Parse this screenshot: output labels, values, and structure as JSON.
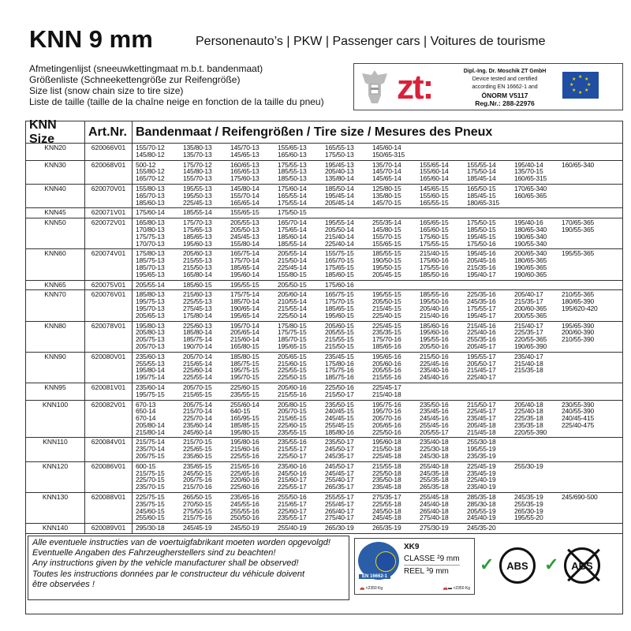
{
  "header": {
    "title": "KNN 9 mm",
    "subtitle": "Personenauto’s | PKW | Passenger cars | Voitures de tourisme",
    "list": [
      "Afmetingenlijst (sneeuwkettingmaat m.b.t. bandenmaat)",
      "Größenliste (Schneekettengröße zur Reifengröße)",
      "Size list (snow chain size to tire size)",
      "Liste de taille (taille de la chaîne neige en fonction de la taille du pneu)"
    ]
  },
  "cert": {
    "logo": "zt:",
    "lines": [
      "Dipl.-Ing. Dr. Moschik ZT GmbH",
      "Device tested and certified",
      "according EN 16662-1 and",
      "ÖNORM V5117",
      "Reg.Nr.: 288-22976"
    ]
  },
  "table": {
    "headers": [
      "KNN Size",
      "Art.Nr.",
      "Bandenmaat / Reifengrößen / Tire size / Mesures des Pneux"
    ],
    "rows": [
      {
        "size": "KNN20",
        "art": "620066V01",
        "lines": [
          [
            "155/70-12",
            "135/80-13",
            "145/70-13",
            "155/65-13",
            "165/55-13",
            "145/60-14"
          ],
          [
            "145/80-12",
            "135/70-13",
            "145/65-13",
            "165/60-13",
            "175/50-13",
            "150/65-315"
          ]
        ]
      },
      {
        "size": "KNN30",
        "art": "620068V01",
        "lines": [
          [
            "500-12",
            "175/70-12",
            "160/65-13",
            "175/55-13",
            "195/45-13",
            "135/70-14",
            "155/65-14",
            "155/55-14",
            "195/40-14",
            "160/65-340"
          ],
          [
            "155/80-12",
            "145/80-13",
            "165/65-13",
            "185/55-13",
            "205/40-13",
            "145/70-14",
            "155/60-14",
            "175/50-14",
            "135/70-15"
          ],
          [
            "165/70-12",
            "155/70-13",
            "175/60-13",
            "185/50-13",
            "135/80-14",
            "145/65-14",
            "165/60-14",
            "185/45-14",
            "160/65-315"
          ]
        ]
      },
      {
        "size": "KNN40",
        "art": "620070V01",
        "lines": [
          [
            "155/80-13",
            "195/55-13",
            "145/80-14",
            "175/60-14",
            "185/50-14",
            "125/80-15",
            "145/65-15",
            "165/50-15",
            "170/65-340"
          ],
          [
            "165/70-13",
            "195/50-13",
            "155/70-14",
            "165/55-14",
            "195/45-14",
            "135/80-15",
            "155/60-15",
            "185/45-15",
            "160/65-365"
          ],
          [
            "185/60-13",
            "225/45-13",
            "165/65-14",
            "175/55-14",
            "205/45-14",
            "145/70-15",
            "165/55-15",
            "180/65-315"
          ]
        ]
      },
      {
        "size": "KNN45",
        "art": "620071V01",
        "lines": [
          [
            "175/60-14",
            "185/55-14",
            "155/65-15",
            "175/50-15"
          ]
        ]
      },
      {
        "size": "KNN50",
        "art": "620072V01",
        "lines": [
          [
            "165/80-13",
            "175/70-13",
            "205/55-13",
            "165/70-14",
            "195/55-14",
            "255/35-14",
            "165/65-15",
            "175/50-15",
            "195/40-16",
            "170/65-365"
          ],
          [
            "170/80-13",
            "175/65-13",
            "205/50-13",
            "175/65-14",
            "205/50-14",
            "145/80-15",
            "165/60-15",
            "185/50-15",
            "180/65-340",
            "190/55-365"
          ],
          [
            "175/75-13",
            "185/65-13",
            "245/45-13",
            "185/60-14",
            "215/40-14",
            "155/70-15",
            "175/60-15",
            "195/45-15",
            "190/65-340"
          ],
          [
            "170/70-13",
            "195/60-13",
            "155/80-14",
            "185/55-14",
            "225/40-14",
            "155/65-15",
            "175/55-15",
            "175/50-16",
            "190/55-340"
          ]
        ]
      },
      {
        "size": "KNN60",
        "art": "620074V01",
        "lines": [
          [
            "175/80-13",
            "205/60-13",
            "165/75-14",
            "205/55-14",
            "155/75-15",
            "185/55-15",
            "215/40-15",
            "195/45-16",
            "200/65-340",
            "195/55-365"
          ],
          [
            "185/75-13",
            "215/55-13",
            "175/70-14",
            "215/50-14",
            "165/70-15",
            "190/50-15",
            "175/60-16",
            "205/45-16",
            "180/65-365"
          ],
          [
            "185/70-13",
            "215/50-13",
            "185/65-14",
            "225/45-14",
            "175/65-15",
            "195/50-15",
            "175/55-16",
            "215/35-16",
            "190/65-365"
          ],
          [
            "195/65-13",
            "165/80-14",
            "195/60-14",
            "155/80-15",
            "185/60-15",
            "205/45-15",
            "185/50-16",
            "195/40-17",
            "190/60-365"
          ]
        ]
      },
      {
        "size": "KNN65",
        "art": "620075V01",
        "lines": [
          [
            "205/55-14",
            "185/60-15",
            "195/55-15",
            "205/50-15",
            "175/60-16"
          ]
        ]
      },
      {
        "size": "KNN70",
        "art": "620076V01",
        "lines": [
          [
            "185/80-13",
            "215/60-13",
            "175/75-14",
            "205/60-14",
            "165/75-15",
            "195/55-15",
            "185/55-16",
            "225/35-16",
            "205/40-17",
            "210/55-365"
          ],
          [
            "195/75-13",
            "225/55-13",
            "185/70-14",
            "210/55-14",
            "175/70-15",
            "205/50-15",
            "195/50-16",
            "245/35-16",
            "215/35-17",
            "180/65-390"
          ],
          [
            "195/70-13",
            "275/45-13",
            "190/65-14",
            "215/55-14",
            "185/65-15",
            "215/45-15",
            "205/40-16",
            "175/55-17",
            "200/60-365",
            "195/620-420"
          ],
          [
            "205/65-13",
            "175/80-14",
            "195/65-14",
            "225/50-14",
            "195/60-15",
            "225/40-15",
            "215/40-16",
            "195/45-17",
            "200/55-365"
          ]
        ]
      },
      {
        "size": "KNN80",
        "art": "620078V01",
        "lines": [
          [
            "195/80-13",
            "225/60-13",
            "195/70-14",
            "175/80-15",
            "205/60-15",
            "225/45-15",
            "185/60-16",
            "215/45-16",
            "215/40-17",
            "195/65-390"
          ],
          [
            "205/80-13",
            "185/80-14",
            "205/65-14",
            "175/75-15",
            "205/55-15",
            "235/35-15",
            "195/60-16",
            "225/40-16",
            "225/35-17",
            "200/60-390"
          ],
          [
            "205/75-13",
            "185/75-14",
            "215/60-14",
            "185/70-15",
            "215/55-15",
            "175/70-16",
            "195/55-16",
            "255/35-16",
            "220/55-365",
            "210/55-390"
          ],
          [
            "205/70-13",
            "190/70-14",
            "165/80-15",
            "195/65-15",
            "215/50-15",
            "185/65-16",
            "205/50-16",
            "205/45-17",
            "190/65-390"
          ]
        ]
      },
      {
        "size": "KNN90",
        "art": "620080V01",
        "lines": [
          [
            "235/60-13",
            "205/70-14",
            "185/80-15",
            "205/65-15",
            "235/45-15",
            "195/65-16",
            "215/50-16",
            "195/55-17",
            "235/40-17"
          ],
          [
            "255/55-13",
            "215/65-14",
            "185/75-15",
            "215/60-15",
            "175/80-16",
            "205/60-16",
            "225/45-16",
            "205/50-17",
            "215/40-18"
          ],
          [
            "195/80-14",
            "225/60-14",
            "195/75-15",
            "225/55-15",
            "175/75-16",
            "205/55-16",
            "235/40-16",
            "215/45-17",
            "215/35-18"
          ],
          [
            "195/75-14",
            "225/55-14",
            "195/70-15",
            "225/50-15",
            "185/75-16",
            "215/55-16",
            "245/40-16",
            "225/40-17"
          ]
        ]
      },
      {
        "size": "KNN95",
        "art": "620081V01",
        "lines": [
          [
            "235/60-14",
            "205/70-15",
            "225/60-15",
            "205/60-16",
            "225/50-16",
            "225/45-17"
          ],
          [
            "195/75-15",
            "215/65-15",
            "235/55-15",
            "215/55-16",
            "215/50-17",
            "215/40-18"
          ]
        ]
      },
      {
        "size": "KNN100",
        "art": "620082V01",
        "lines": [
          [
            "670-13",
            "205/75-14",
            "255/60-14",
            "205/80-15",
            "235/50-15",
            "195/75-16",
            "235/50-16",
            "215/50-17",
            "205/40-18",
            "230/55-390"
          ],
          [
            "650-14",
            "215/70-14",
            "640-15",
            "205/70-15",
            "240/45-15",
            "195/70-16",
            "235/45-16",
            "225/45-17",
            "225/40-18",
            "240/55-390"
          ],
          [
            "670-14",
            "225/70-14",
            "165/95-15",
            "215/65-15",
            "245/45-15",
            "205/70-16",
            "245/45-16",
            "235/45-17",
            "225/35-18",
            "240/45-415"
          ],
          [
            "205/80-14",
            "235/60-14",
            "185/85-15",
            "225/60-15",
            "255/45-15",
            "205/65-16",
            "255/45-16",
            "205/45-18",
            "235/35-18",
            "225/40-475"
          ],
          [
            "215/80-14",
            "245/60-14",
            "195/80-15",
            "235/55-15",
            "185/80-16",
            "225/50-16",
            "205/55-17",
            "215/45-18",
            "220/55-390"
          ]
        ]
      },
      {
        "size": "KNN110",
        "art": "620084V01",
        "lines": [
          [
            "215/75-14",
            "215/70-15",
            "195/80-16",
            "235/55-16",
            "235/50-17",
            "195/60-18",
            "235/40-18",
            "255/30-18"
          ],
          [
            "235/70-14",
            "225/65-15",
            "215/60-16",
            "215/55-17",
            "245/50-17",
            "215/50-18",
            "225/30-18",
            "195/55-19"
          ],
          [
            "205/75-15",
            "235/60-15",
            "225/55-16",
            "225/50-17",
            "245/35-17",
            "225/45-18",
            "245/30-18",
            "235/35-19"
          ]
        ]
      },
      {
        "size": "KNN120",
        "art": "620086V01",
        "lines": [
          [
            "600-15",
            "235/65-15",
            "215/65-16",
            "235/60-16",
            "245/50-17",
            "215/55-18",
            "255/40-18",
            "225/45-19",
            "255/30-19"
          ],
          [
            "215/75-15",
            "245/50-15",
            "225/65-16",
            "245/50-16",
            "245/45-17",
            "225/50-18",
            "245/35-18",
            "235/45-19"
          ],
          [
            "225/70-15",
            "205/75-16",
            "220/60-16",
            "215/60-17",
            "255/40-17",
            "235/50-18",
            "255/35-18",
            "225/40-19"
          ],
          [
            "235/70-15",
            "215/70-16",
            "225/60-16",
            "225/55-17",
            "265/35-17",
            "235/45-18",
            "265/35-18",
            "235/40-19"
          ]
        ]
      },
      {
        "size": "KNN130",
        "art": "620088V01",
        "lines": [
          [
            "225/75-15",
            "265/50-15",
            "235/65-16",
            "255/50-16",
            "255/55-17",
            "275/35-17",
            "255/45-18",
            "285/35-18",
            "245/35-19",
            "245/690-500"
          ],
          [
            "235/75-15",
            "270/50-15",
            "245/55-16",
            "215/65-17",
            "255/45-17",
            "225/55-18",
            "245/40-18",
            "285/30-18",
            "255/35-19"
          ],
          [
            "245/60-15",
            "275/50-15",
            "255/55-16",
            "225/60-17",
            "265/40-17",
            "245/50-18",
            "265/40-18",
            "205/55-19",
            "265/30-19"
          ],
          [
            "255/60-15",
            "215/75-16",
            "250/50-16",
            "235/55-17",
            "275/40-17",
            "245/45-18",
            "275/40-18",
            "245/40-19",
            "195/55-20"
          ]
        ]
      },
      {
        "size": "KNN140",
        "art": "620089V01",
        "lines": [
          [
            "295/30-18",
            "245/45-19",
            "245/50-19",
            "255/40-19",
            "265/30-19",
            "265/35-19",
            "275/30-19",
            "245/35-20"
          ]
        ]
      }
    ]
  },
  "footer": {
    "notes": [
      "Alle eventuele instructies van de voertuigfabrikant moeten worden opgevolgd!",
      "Eventuelle Angaben des Fahrzeugherstellers sind zu beachten!",
      "Any instructions given by the vehicle manufacturer shall be observed!",
      "Toutes les instructions données par le constructeur du véhicule doivent",
      "être observées !"
    ],
    "badge": {
      "model": "XK9",
      "classe": "CLASSE ²9 mm",
      "reel": "REEL ³9 mm",
      "standard": "EN 16662-1",
      "weight1": "<2350 Kg",
      "weight2": "<2350 Kg"
    },
    "abs_label": "ABS",
    "abs_crossed_label": "ABS",
    "colors": {
      "check": "#2e9a3b",
      "zt_red": "#d9213b",
      "eu_blue": "#1f4ea3"
    }
  }
}
